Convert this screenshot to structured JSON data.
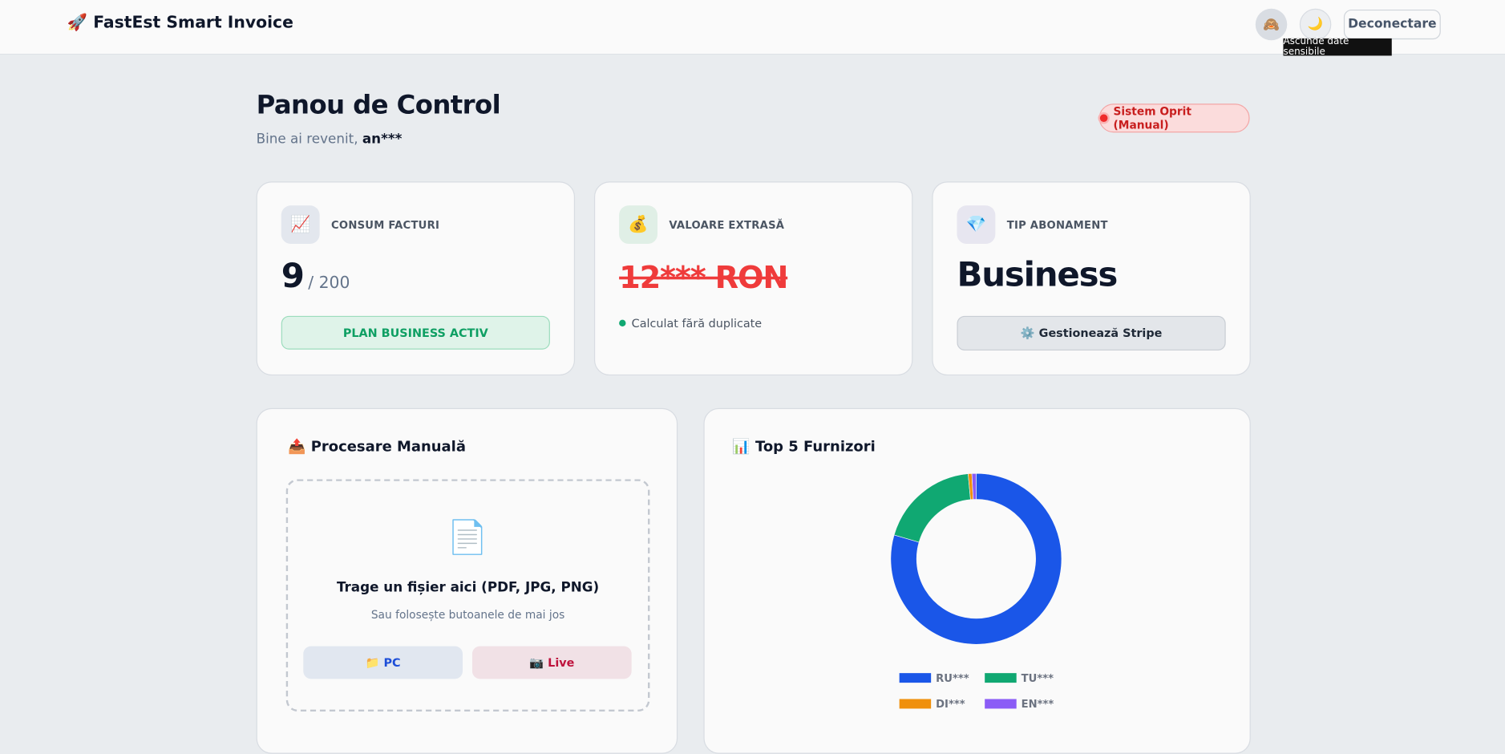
{
  "header": {
    "brand": "🚀 FastEst Smart Invoice",
    "privacy_icon": "🙈",
    "theme_icon": "🌙",
    "tooltip": "Ascunde date sensibile",
    "logout": "Deconectare"
  },
  "dashboard": {
    "title": "Panou de Control",
    "welcome": "Bine ai revenit,",
    "user": "an***",
    "status": "Sistem Oprit (Manual)"
  },
  "cards": [
    {
      "icon": "📈",
      "label": "CONSUM FACTURI",
      "value": "9",
      "limit": "/ 200",
      "badge": "PLAN BUSINESS ACTIV"
    },
    {
      "icon": "💰",
      "label": "VALOARE EXTRASĂ",
      "value": "12*** RON",
      "note": "Calculat fără duplicate"
    },
    {
      "icon": "💎",
      "label": "TIP ABONAMENT",
      "value": "Business",
      "button": "⚙️ Gestionează Stripe"
    }
  ],
  "upload": {
    "title": "📤 Procesare Manuală",
    "icon": "📄",
    "drop_text": "Trage un fișier aici (PDF, JPG, PNG)",
    "hint": "Sau folosește butoanele de mai jos",
    "pc_button": "📁 PC",
    "live_button": "📷 Live"
  },
  "chart_data": {
    "type": "pie",
    "title": "📊 Top 5 Furnizori",
    "categories": [
      "RU***",
      "TU***",
      "DI***",
      "EN***"
    ],
    "values": [
      79.5,
      19,
      0.7,
      0.8
    ],
    "colors": [
      "#1a56e8",
      "#10a872",
      "#f0900c",
      "#8b5cf6"
    ],
    "donut": true
  }
}
